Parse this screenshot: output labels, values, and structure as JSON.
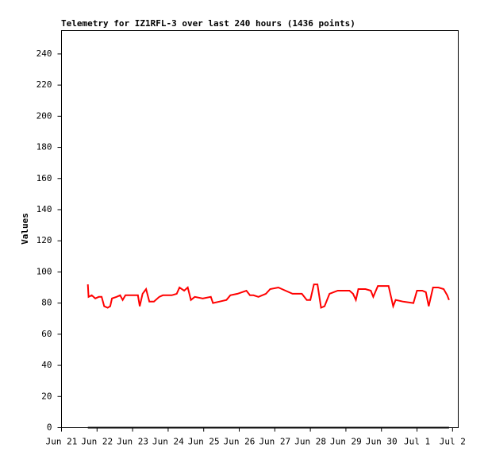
{
  "chart_data": {
    "type": "line",
    "title": "Telemetry for IZ1RFL-3 over last 240 hours (1436 points)",
    "y_label": "Values",
    "xlim": [
      0,
      11.16
    ],
    "ylim": [
      0,
      255
    ],
    "yticks": [
      0,
      20,
      40,
      60,
      80,
      100,
      120,
      140,
      160,
      180,
      200,
      220,
      240
    ],
    "xticks": [
      {
        "value": 0,
        "label": "Jun 21"
      },
      {
        "value": 1,
        "label": "Jun 22"
      },
      {
        "value": 2,
        "label": "Jun 23"
      },
      {
        "value": 3,
        "label": "Jun 24"
      },
      {
        "value": 4,
        "label": "Jun 25"
      },
      {
        "value": 5,
        "label": "Jun 26"
      },
      {
        "value": 6,
        "label": "Jun 27"
      },
      {
        "value": 7,
        "label": "Jun 28"
      },
      {
        "value": 8,
        "label": "Jun 29"
      },
      {
        "value": 9,
        "label": "Jun 30"
      },
      {
        "value": 10,
        "label": "Jul 1"
      },
      {
        "value": 11,
        "label": "Jul 2"
      }
    ],
    "grid": false,
    "series": [
      {
        "color": "#ff0000",
        "x": [
          0.74,
          0.76,
          0.85,
          0.95,
          1.05,
          1.13,
          1.2,
          1.3,
          1.37,
          1.42,
          1.55,
          1.65,
          1.72,
          1.8,
          2.0,
          2.15,
          2.2,
          2.28,
          2.38,
          2.47,
          2.6,
          2.75,
          2.85,
          2.97,
          3.1,
          3.24,
          3.32,
          3.45,
          3.55,
          3.64,
          3.75,
          3.97,
          4.2,
          4.26,
          4.45,
          4.64,
          4.75,
          4.95,
          5.2,
          5.3,
          5.4,
          5.54,
          5.75,
          5.87,
          6.1,
          6.3,
          6.5,
          6.76,
          6.9,
          7.0,
          7.1,
          7.2,
          7.3,
          7.4,
          7.54,
          7.77,
          7.95,
          8.1,
          8.2,
          8.28,
          8.35,
          8.55,
          8.7,
          8.77,
          8.9,
          9.05,
          9.2,
          9.33,
          9.4,
          9.6,
          9.9,
          10.0,
          10.15,
          10.25,
          10.33,
          10.45,
          10.6,
          10.75,
          10.85,
          10.9
        ],
        "values": [
          92,
          84,
          85,
          83,
          84,
          84,
          78,
          77,
          78,
          83,
          84,
          85,
          82,
          85,
          85,
          85,
          78,
          86,
          89,
          81,
          81,
          84,
          85,
          85,
          85,
          86,
          90,
          88,
          90,
          82,
          84,
          83,
          84,
          80,
          81,
          82,
          85,
          86,
          88,
          85,
          85,
          84,
          86,
          89,
          90,
          88,
          86,
          86,
          82,
          82,
          92,
          92,
          77,
          78,
          86,
          88,
          88,
          88,
          86,
          82,
          89,
          89,
          88,
          84,
          91,
          91,
          91,
          78,
          82,
          81,
          80,
          88,
          88,
          87,
          78,
          90,
          90,
          89,
          85,
          82
        ]
      },
      {
        "color": "#000000",
        "x": [
          0.74,
          10.9
        ],
        "values": [
          0,
          0
        ]
      }
    ]
  }
}
